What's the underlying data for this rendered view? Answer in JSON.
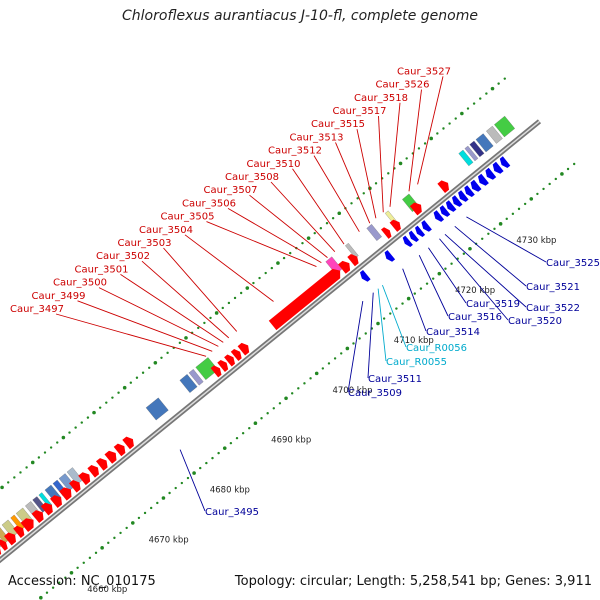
{
  "title": "Chloroflexus aurantiacus J-10-fl, complete genome",
  "footer": {
    "accession": "Accession: NC_010175",
    "summary": "Topology: circular; Length: 5,258,541 bp; Genes: 3,911"
  },
  "colors": {
    "forward": "#ff0000",
    "reverse": "#0000ee",
    "rna": "#00bbdd",
    "label_forward": "#cc0000",
    "label_reverse": "#000099",
    "label_rna": "#00aacc",
    "axis": "#888888",
    "tick": "#228822"
  },
  "kbp_ticks": [
    {
      "label": "4660 kbp",
      "pos": 4660
    },
    {
      "label": "4670 kbp",
      "pos": 4670
    },
    {
      "label": "4680 kbp",
      "pos": 4680
    },
    {
      "label": "4690 kbp",
      "pos": 4690
    },
    {
      "label": "4700 kbp",
      "pos": 4700
    },
    {
      "label": "4710 kbp",
      "pos": 4710
    },
    {
      "label": "4720 kbp",
      "pos": 4720
    },
    {
      "label": "4730 kbp",
      "pos": 4730
    }
  ],
  "forward_labels": [
    {
      "name": "Caur_3497",
      "pos": 4690.5
    },
    {
      "name": "Caur_3499",
      "pos": 4691.5
    },
    {
      "name": "Caur_3500",
      "pos": 4692.5
    },
    {
      "name": "Caur_3501",
      "pos": 4693.3
    },
    {
      "name": "Caur_3502",
      "pos": 4694.2
    },
    {
      "name": "Caur_3503",
      "pos": 4695.5
    },
    {
      "name": "Caur_3504",
      "pos": 4701.5
    },
    {
      "name": "Caur_3505",
      "pos": 4708.5
    },
    {
      "name": "Caur_3506",
      "pos": 4709.3
    },
    {
      "name": "Caur_3507",
      "pos": 4710.3
    },
    {
      "name": "Caur_3508",
      "pos": 4711.5
    },
    {
      "name": "Caur_3510",
      "pos": 4713.0
    },
    {
      "name": "Caur_3512",
      "pos": 4715.5
    },
    {
      "name": "Caur_3513",
      "pos": 4717.2
    },
    {
      "name": "Caur_3515",
      "pos": 4718.2
    },
    {
      "name": "Caur_3517",
      "pos": 4719.4
    },
    {
      "name": "Caur_3518",
      "pos": 4720.5
    },
    {
      "name": "Caur_3526",
      "pos": 4723.6
    },
    {
      "name": "Caur_3527",
      "pos": 4725.0
    }
  ],
  "reverse_labels": [
    {
      "name": "Caur_3495",
      "pos": 4680.5,
      "kind": "cds"
    },
    {
      "name": "Caur_3509",
      "pos": 4710.3,
      "kind": "cds"
    },
    {
      "name": "Caur_3511",
      "pos": 4712.0,
      "kind": "cds"
    },
    {
      "name": "Caur_R0055",
      "pos": 4712.8,
      "kind": "rna"
    },
    {
      "name": "Caur_R0056",
      "pos": 4713.5,
      "kind": "rna"
    },
    {
      "name": "Caur_3514",
      "pos": 4716.8,
      "kind": "cds"
    },
    {
      "name": "Caur_3516",
      "pos": 4719.5,
      "kind": "cds"
    },
    {
      "name": "Caur_3519",
      "pos": 4721.0,
      "kind": "cds"
    },
    {
      "name": "Caur_3520",
      "pos": 4722.8,
      "kind": "cds"
    },
    {
      "name": "Caur_3522",
      "pos": 4723.7,
      "kind": "cds"
    },
    {
      "name": "Caur_3521",
      "pos": 4725.3,
      "kind": "cds"
    },
    {
      "name": "Caur_3525",
      "pos": 4727.2,
      "kind": "cds"
    }
  ],
  "forward_genes": [
    {
      "start": 4654.0,
      "end": 4655.0,
      "strand": "+"
    },
    {
      "start": 4655.2,
      "end": 4656.0,
      "strand": "+"
    },
    {
      "start": 4656.3,
      "end": 4657.5,
      "strand": "+"
    },
    {
      "start": 4657.8,
      "end": 4658.8,
      "strand": "+"
    },
    {
      "start": 4659.0,
      "end": 4660.5,
      "strand": "+"
    },
    {
      "start": 4660.8,
      "end": 4662.0,
      "strand": "+"
    },
    {
      "start": 4662.3,
      "end": 4663.5,
      "strand": "+"
    },
    {
      "start": 4663.8,
      "end": 4665.0,
      "strand": "+"
    },
    {
      "start": 4665.3,
      "end": 4666.6,
      "strand": "+"
    },
    {
      "start": 4666.9,
      "end": 4668.0,
      "strand": "+"
    },
    {
      "start": 4668.4,
      "end": 4669.6,
      "strand": "+"
    },
    {
      "start": 4669.9,
      "end": 4671.0,
      "strand": "+"
    },
    {
      "start": 4671.3,
      "end": 4672.4,
      "strand": "+"
    },
    {
      "start": 4672.7,
      "end": 4673.9,
      "strand": "+"
    },
    {
      "start": 4674.2,
      "end": 4675.3,
      "strand": "+"
    },
    {
      "start": 4675.6,
      "end": 4676.7,
      "strand": "+"
    },
    {
      "start": 4690.0,
      "end": 4690.9,
      "strand": "+"
    },
    {
      "start": 4691.1,
      "end": 4692.0,
      "strand": "+"
    },
    {
      "start": 4692.2,
      "end": 4693.1,
      "strand": "+"
    },
    {
      "start": 4693.3,
      "end": 4694.2,
      "strand": "+"
    },
    {
      "start": 4694.4,
      "end": 4695.5,
      "strand": "+"
    },
    {
      "start": 4699.5,
      "end": 4710.5,
      "strand": "+"
    },
    {
      "start": 4710.8,
      "end": 4712.0,
      "strand": "+"
    },
    {
      "start": 4712.3,
      "end": 4713.3,
      "strand": "+"
    },
    {
      "start": 4717.8,
      "end": 4718.6,
      "strand": "+"
    },
    {
      "start": 4719.2,
      "end": 4720.2,
      "strand": "+"
    },
    {
      "start": 4722.5,
      "end": 4723.7,
      "strand": "+"
    },
    {
      "start": 4727.0,
      "end": 4728.1,
      "strand": "+"
    }
  ],
  "reverse_genes": [
    {
      "start": 4712.0,
      "end": 4712.8,
      "strand": "-"
    },
    {
      "start": 4716.0,
      "end": 4716.8,
      "strand": "-"
    },
    {
      "start": 4719.0,
      "end": 4719.7,
      "strand": "-"
    },
    {
      "start": 4720.0,
      "end": 4720.7,
      "strand": "-"
    },
    {
      "start": 4721.0,
      "end": 4721.7,
      "strand": "-"
    },
    {
      "start": 4722.0,
      "end": 4722.8,
      "strand": "-"
    },
    {
      "start": 4724.0,
      "end": 4724.8,
      "strand": "-"
    },
    {
      "start": 4725.0,
      "end": 4725.8,
      "strand": "-"
    },
    {
      "start": 4726.0,
      "end": 4726.8,
      "strand": "-"
    },
    {
      "start": 4727.0,
      "end": 4727.8,
      "strand": "-"
    },
    {
      "start": 4728.0,
      "end": 4728.8,
      "strand": "-"
    },
    {
      "start": 4729.0,
      "end": 4729.8,
      "strand": "-"
    },
    {
      "start": 4730.0,
      "end": 4730.9,
      "strand": "-"
    },
    {
      "start": 4731.2,
      "end": 4732.1,
      "strand": "-"
    },
    {
      "start": 4732.4,
      "end": 4733.3,
      "strand": "-"
    },
    {
      "start": 4733.6,
      "end": 4734.5,
      "strand": "-"
    },
    {
      "start": 4734.8,
      "end": 4735.6,
      "strand": "-"
    }
  ],
  "cog_blocks": [
    {
      "start": 4654.3,
      "end": 4655.3,
      "color": "#bbbbbb"
    },
    {
      "start": 4655.8,
      "end": 4656.6,
      "color": "#ccaa55"
    },
    {
      "start": 4657.0,
      "end": 4658.0,
      "color": "#cccc88"
    },
    {
      "start": 4658.4,
      "end": 4659.0,
      "color": "#ff9900"
    },
    {
      "start": 4659.3,
      "end": 4660.4,
      "color": "#cccc88"
    },
    {
      "start": 4660.8,
      "end": 4661.7,
      "color": "#bbbbbb"
    },
    {
      "start": 4662.0,
      "end": 4662.7,
      "color": "#555588"
    },
    {
      "start": 4663.0,
      "end": 4663.5,
      "color": "#00dddd"
    },
    {
      "start": 4664.0,
      "end": 4665.0,
      "color": "#4477bb"
    },
    {
      "start": 4665.3,
      "end": 4666.0,
      "color": "#3366cc"
    },
    {
      "start": 4666.3,
      "end": 4667.3,
      "color": "#7799cc"
    },
    {
      "start": 4667.6,
      "end": 4668.5,
      "color": "#aabbcc"
    },
    {
      "start": 4680.5,
      "end": 4682.5,
      "color": "#4477bb"
    },
    {
      "start": 4686.0,
      "end": 4687.2,
      "color": "#4477bb"
    },
    {
      "start": 4687.5,
      "end": 4688.2,
      "color": "#9999cc"
    },
    {
      "start": 4688.6,
      "end": 4690.6,
      "color": "#44cc44"
    },
    {
      "start": 4709.8,
      "end": 4710.8,
      "color": "#ff44bb"
    },
    {
      "start": 4713.0,
      "end": 4713.5,
      "color": "#bbbbbb"
    },
    {
      "start": 4716.5,
      "end": 4717.3,
      "color": "#9999cc"
    },
    {
      "start": 4719.5,
      "end": 4720.0,
      "color": "#eeee99"
    },
    {
      "start": 4722.3,
      "end": 4723.4,
      "color": "#44cc44"
    },
    {
      "start": 4731.5,
      "end": 4732.2,
      "color": "#00dddd"
    },
    {
      "start": 4732.5,
      "end": 4733.0,
      "color": "#9999cc"
    },
    {
      "start": 4733.3,
      "end": 4734.0,
      "color": "#333388"
    },
    {
      "start": 4734.3,
      "end": 4735.5,
      "color": "#4477bb"
    },
    {
      "start": 4736.0,
      "end": 4737.0,
      "color": "#bbbbbb"
    },
    {
      "start": 4737.3,
      "end": 4739.0,
      "color": "#44cc44"
    }
  ]
}
